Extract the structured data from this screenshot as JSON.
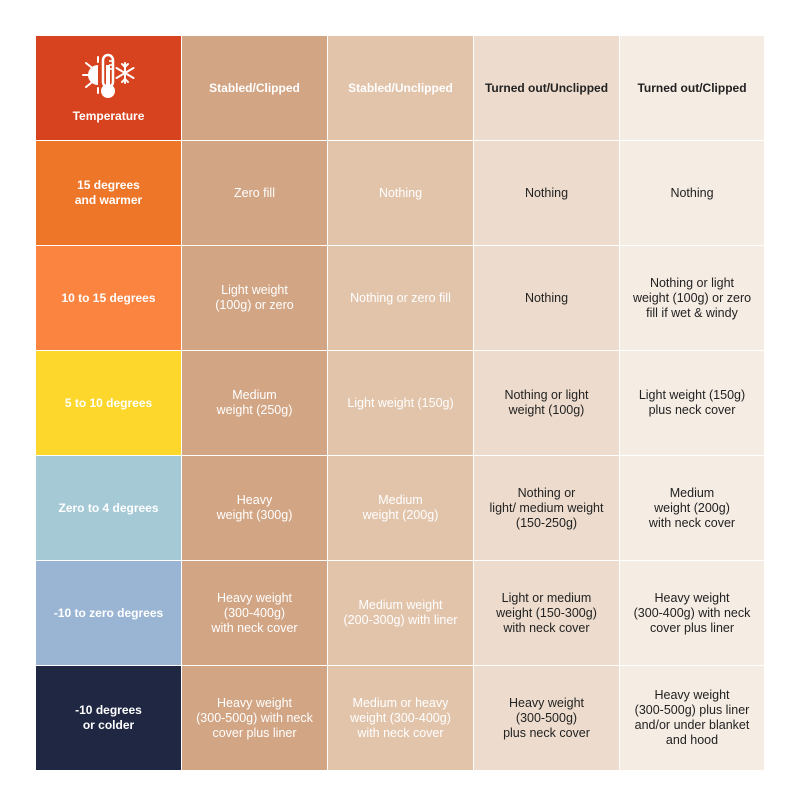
{
  "colors": {
    "temperature_header": "#d8431f",
    "row_bgs": [
      "#ee7629",
      "#fb8440",
      "#fdd72c",
      "#a6c9d6",
      "#9ab5d3",
      "#1f2743"
    ],
    "col_bgs": [
      "#d2a584",
      "#e2c4ab",
      "#eddccd",
      "#f5ece4"
    ]
  },
  "header": {
    "temperature_label": "Temperature",
    "icon": "thermometer-sun-snowflake-icon",
    "columns": [
      "Stabled/Clipped",
      "Stabled/Unclipped",
      "Turned out/Unclipped",
      "Turned out/Clipped"
    ]
  },
  "rows": [
    {
      "label": "15 degrees\nand warmer",
      "cells": [
        "Zero fill",
        "Nothing",
        "Nothing",
        "Nothing"
      ]
    },
    {
      "label": "10 to 15 degrees",
      "cells": [
        "Light weight\n(100g) or zero",
        "Nothing or zero fill",
        "Nothing",
        "Nothing or light\nweight (100g) or zero\nfill if wet & windy"
      ]
    },
    {
      "label": "5 to 10 degrees",
      "cells": [
        "Medium\nweight (250g)",
        "Light weight (150g)",
        "Nothing or light\nweight (100g)",
        "Light weight (150g)\nplus neck cover"
      ]
    },
    {
      "label": "Zero to 4 degrees",
      "cells": [
        "Heavy\nweight (300g)",
        "Medium\nweight (200g)",
        "Nothing or\nlight/ medium weight\n(150-250g)",
        "Medium\nweight (200g)\nwith neck cover"
      ]
    },
    {
      "label": "-10 to zero degrees",
      "cells": [
        "Heavy weight\n(300-400g)\nwith neck cover",
        "Medium weight\n(200-300g) with liner",
        "Light or medium\nweight (150-300g)\nwith neck cover",
        "Heavy weight\n(300-400g) with neck\ncover plus liner"
      ]
    },
    {
      "label": "-10 degrees\nor colder",
      "cells": [
        "Heavy weight\n(300-500g) with neck\ncover plus liner",
        "Medium or heavy\nweight (300-400g)\nwith neck cover",
        "Heavy weight\n(300-500g)\nplus neck cover",
        "Heavy weight\n(300-500g) plus liner\nand/or under blanket\nand hood"
      ]
    }
  ]
}
